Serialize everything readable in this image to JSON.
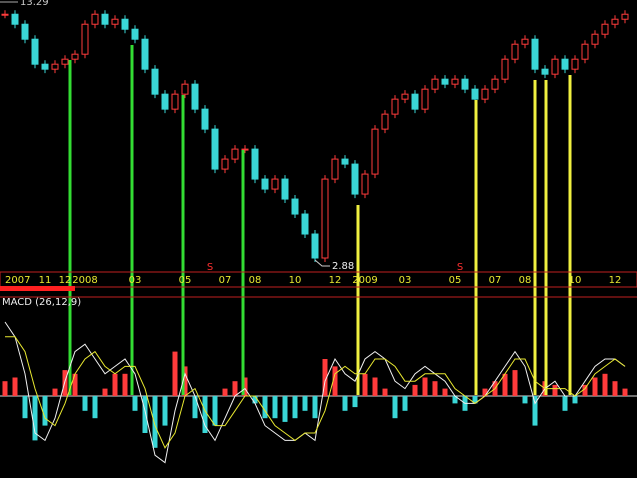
{
  "chart_data": {
    "type": "stock",
    "categories": [
      "2007",
      null,
      null,
      null,
      "11",
      null,
      "12",
      null,
      "2008",
      null,
      null,
      null,
      null,
      "03",
      null,
      null,
      null,
      null,
      "05",
      null,
      null,
      null,
      "07",
      null,
      null,
      "08",
      null,
      null,
      null,
      "10",
      null,
      null,
      null,
      "12",
      null,
      null,
      "2009",
      null,
      null,
      null,
      "03",
      null,
      null,
      null,
      null,
      "05",
      null,
      null,
      null,
      "07",
      null,
      null,
      "08",
      null,
      null,
      null,
      null,
      "10",
      null,
      null,
      null,
      "12",
      null
    ],
    "close": [
      12.8,
      12.4,
      11.8,
      10.8,
      10.6,
      10.8,
      11.0,
      11.2,
      12.4,
      12.8,
      12.4,
      12.6,
      12.2,
      11.8,
      10.6,
      9.6,
      9.0,
      9.6,
      10.0,
      9.0,
      8.2,
      6.6,
      7.0,
      7.4,
      7.4,
      6.2,
      5.8,
      6.2,
      5.4,
      4.8,
      4.0,
      3.04,
      6.2,
      7.0,
      6.8,
      5.6,
      6.4,
      8.2,
      8.8,
      9.4,
      9.6,
      9.0,
      9.8,
      10.2,
      10.0,
      10.2,
      9.8,
      9.4,
      9.8,
      10.2,
      11.0,
      11.6,
      11.8,
      10.6,
      10.4,
      11.0,
      10.6,
      11.0,
      11.6,
      12.0,
      12.4,
      12.6,
      12.8
    ],
    "ylim": [
      2.88,
      13.29
    ],
    "up_color": "#ff3b3b",
    "down_color": "#3ad6d6",
    "annotations": [
      "S",
      "S"
    ],
    "macd": {
      "title": "MACD (26,12,9)",
      "ylim": [
        -1,
        1
      ],
      "histogram": [
        0.2,
        0.25,
        -0.3,
        -0.6,
        -0.4,
        0.1,
        0.35,
        0.3,
        -0.2,
        -0.3,
        0.1,
        0.3,
        0.3,
        -0.2,
        -0.5,
        -0.7,
        -0.4,
        0.6,
        0.4,
        -0.3,
        -0.5,
        -0.4,
        0.1,
        0.2,
        0.25,
        -0.1,
        -0.3,
        -0.3,
        -0.35,
        -0.3,
        -0.2,
        -0.3,
        0.5,
        0.4,
        -0.2,
        -0.15,
        0.3,
        0.25,
        0.1,
        -0.3,
        -0.2,
        0.15,
        0.25,
        0.2,
        0.1,
        -0.1,
        -0.2,
        -0.1,
        0.1,
        0.2,
        0.3,
        0.35,
        -0.1,
        -0.4,
        0.2,
        0.15,
        -0.2,
        -0.1,
        0.15,
        0.25,
        0.3,
        0.2,
        0.1
      ],
      "series": [
        {
          "color": "#f0f0f0",
          "values": [
            1.0,
            0.8,
            0.3,
            -0.5,
            -0.6,
            -0.3,
            0.2,
            0.6,
            0.7,
            0.5,
            0.3,
            0.4,
            0.5,
            0.3,
            -0.2,
            -0.8,
            -0.9,
            -0.2,
            0.3,
            0.0,
            -0.4,
            -0.6,
            -0.3,
            0.0,
            0.1,
            -0.1,
            -0.4,
            -0.5,
            -0.6,
            -0.6,
            -0.5,
            -0.6,
            0.2,
            0.5,
            0.3,
            0.2,
            0.5,
            0.6,
            0.5,
            0.2,
            0.1,
            0.3,
            0.4,
            0.3,
            0.2,
            0.0,
            -0.1,
            -0.1,
            0.0,
            0.2,
            0.4,
            0.6,
            0.4,
            -0.1,
            0.1,
            0.2,
            0.0,
            0.0,
            0.2,
            0.4,
            0.5,
            0.5,
            0.4
          ]
        },
        {
          "color": "#e8e830",
          "values": [
            0.8,
            0.8,
            0.6,
            0.1,
            -0.3,
            -0.4,
            -0.1,
            0.3,
            0.5,
            0.6,
            0.4,
            0.3,
            0.4,
            0.4,
            0.1,
            -0.4,
            -0.7,
            -0.5,
            0.0,
            0.1,
            -0.2,
            -0.4,
            -0.4,
            -0.2,
            0.0,
            0.0,
            -0.2,
            -0.4,
            -0.5,
            -0.6,
            -0.5,
            -0.5,
            -0.2,
            0.3,
            0.4,
            0.3,
            0.3,
            0.5,
            0.5,
            0.4,
            0.2,
            0.2,
            0.3,
            0.3,
            0.3,
            0.1,
            0.0,
            -0.1,
            0.0,
            0.1,
            0.3,
            0.5,
            0.5,
            0.2,
            0.1,
            0.1,
            0.1,
            0.0,
            0.1,
            0.3,
            0.4,
            0.5,
            0.4
          ]
        }
      ]
    }
  }
}
